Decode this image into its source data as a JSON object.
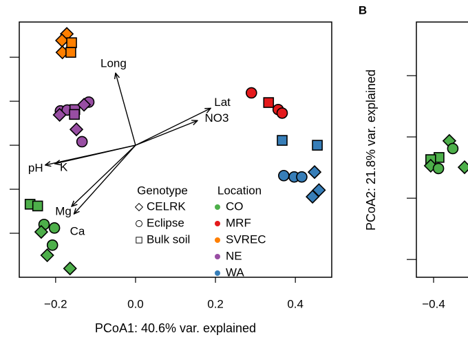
{
  "chart_data": [
    {
      "type": "scatter",
      "x_label": "PCoA1: 40.6% var. explained",
      "xlim": [
        -0.291,
        0.491
      ],
      "ylim": [
        -0.3,
        0.28
      ],
      "xticks": [
        {
          "value": -0.2,
          "label": "−0.2"
        },
        {
          "value": 0,
          "label": "0.0"
        },
        0.2,
        0.4
      ],
      "yticks": [
        -0.2,
        -0.1,
        0,
        0.1,
        0.2
      ],
      "genotype_legend": {
        "title": "Genotype",
        "entries": [
          {
            "name": "CELRK",
            "marker": "diamond"
          },
          {
            "name": "Eclipse",
            "marker": "circle"
          },
          {
            "name": "Bulk soil",
            "marker": "square"
          }
        ]
      },
      "location_legend_title": "Location",
      "series": [
        {
          "name": "CO",
          "color": "#4daf4a",
          "x": [
            -0.264,
            -0.245,
            -0.229,
            -0.203,
            -0.236,
            -0.208,
            -0.221,
            -0.164
          ],
          "y": [
            -0.134,
            -0.138,
            -0.18,
            -0.188,
            -0.197,
            -0.227,
            -0.25,
            -0.28
          ],
          "genotype": [
            "Bulk soil",
            "Bulk soil",
            "Eclipse",
            "Eclipse",
            "CELRK",
            "Eclipse",
            "CELRK",
            "CELRK"
          ]
        },
        {
          "name": "MRF",
          "color": "#e41a1c",
          "x": [
            0.29,
            0.333,
            0.357,
            0.367
          ],
          "y": [
            0.119,
            0.097,
            0.081,
            0.073
          ],
          "genotype": [
            "Eclipse",
            "Bulk soil",
            "Eclipse",
            "Eclipse"
          ]
        },
        {
          "name": "SVREC",
          "color": "#ff7f00",
          "x": [
            -0.172,
            -0.184,
            -0.16,
            -0.183,
            -0.162
          ],
          "y": [
            0.253,
            0.238,
            0.233,
            0.211,
            0.211
          ],
          "genotype": [
            "CELRK",
            "CELRK",
            "Bulk soil",
            "CELRK",
            "Bulk soil"
          ]
        },
        {
          "name": "NE",
          "color": "#984ea3",
          "x": [
            -0.188,
            -0.171,
            -0.152,
            -0.19,
            -0.153,
            -0.117,
            -0.129,
            -0.148,
            -0.134
          ],
          "y": [
            0.078,
            0.08,
            0.081,
            0.069,
            0.07,
            0.098,
            0.092,
            0.036,
            0.008
          ],
          "genotype": [
            "Eclipse",
            "Eclipse",
            "Bulk soil",
            "CELRK",
            "Bulk soil",
            "Eclipse",
            "CELRK",
            "CELRK",
            "Eclipse"
          ]
        },
        {
          "name": "WA",
          "color": "#377eb8",
          "x": [
            0.367,
            0.455,
            0.371,
            0.397,
            0.416,
            0.448,
            0.459,
            0.443
          ],
          "y": [
            0.011,
            0.0,
            -0.069,
            -0.072,
            -0.072,
            -0.061,
            -0.102,
            -0.117
          ],
          "genotype": [
            "Bulk soil",
            "Bulk soil",
            "Eclipse",
            "Eclipse",
            "Eclipse",
            "CELRK",
            "CELRK",
            "CELRK"
          ]
        }
      ],
      "vectors": [
        {
          "label": "Long",
          "x": -0.05,
          "y": 0.164
        },
        {
          "label": "Lat",
          "x": 0.188,
          "y": 0.084
        },
        {
          "label": "NO3",
          "x": 0.155,
          "y": 0.056
        },
        {
          "label": "pH",
          "x": -0.226,
          "y": -0.045
        },
        {
          "label": "K",
          "x": -0.202,
          "y": -0.042
        },
        {
          "label": "Mg",
          "x": -0.16,
          "y": -0.139
        },
        {
          "label": "Ca",
          "x": -0.154,
          "y": -0.156
        }
      ]
    },
    {
      "type": "scatter",
      "panel_label": "B",
      "y_label": "PCoA2: 21.8% var. explained",
      "xlim": [
        -0.46,
        -0.28
      ],
      "ylim": [
        -0.458,
        0.375
      ],
      "xticks": [
        {
          "value": -0.4,
          "label": "−0.4"
        }
      ],
      "yticks": [
        {
          "value": -0.4,
          "label": "−0.4"
        },
        {
          "value": -0.2,
          "label": "−0.2"
        },
        {
          "value": 0,
          "label": "0.0"
        },
        0.2
      ],
      "series": [
        {
          "name": "CO",
          "color": "#4daf4a",
          "x": [
            -0.345,
            -0.333,
            -0.381,
            -0.41,
            -0.41,
            -0.383,
            -0.292
          ],
          "y": [
            -0.013,
            -0.038,
            -0.067,
            -0.074,
            -0.094,
            -0.103,
            -0.099
          ],
          "genotype": [
            "CELRK",
            "Eclipse",
            "Bulk soil",
            "Bulk soil",
            "CELRK",
            "Eclipse",
            "CELRK"
          ]
        }
      ]
    }
  ]
}
